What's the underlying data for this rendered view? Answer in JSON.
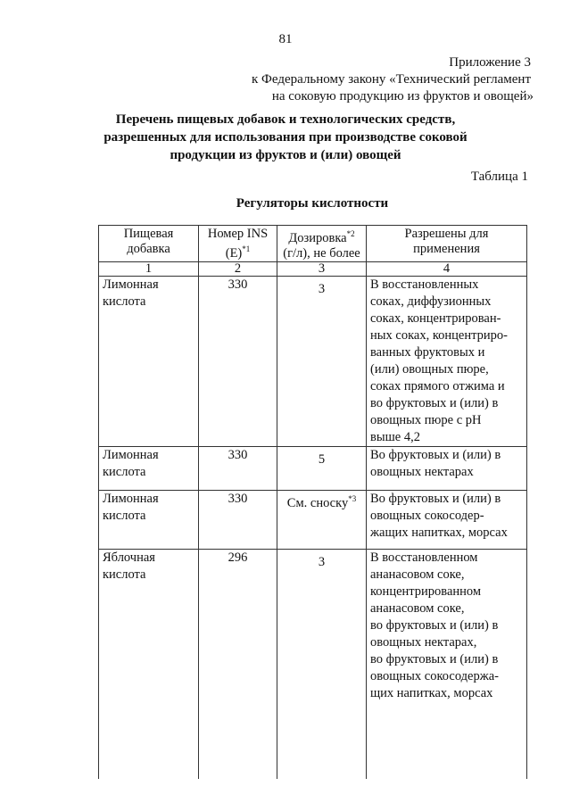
{
  "page_number": "81",
  "appendix": {
    "line1": "Приложение 3",
    "line2": "к Федеральному закону  «Технический регламент",
    "line3": "на соковую продукцию из фруктов и овощей»"
  },
  "title": "Перечень пищевых добавок и технологических средств,\nразрешенных для использования при производстве соковой\nпродукции из фруктов и (или) овощей",
  "table_label": "Таблица 1",
  "subtitle": "Регуляторы кислотности",
  "table": {
    "headers": [
      {
        "text": "Пищевая\nдобавка",
        "sup": ""
      },
      {
        "text": "Номер INS\n(E)",
        "sup": "*1"
      },
      {
        "text": "Дозировка",
        "sup": "*2",
        "text2": "\n(г/л), не более"
      },
      {
        "text": "Разрешены для\nприменения",
        "sup": ""
      }
    ],
    "column_numbers": [
      "1",
      "2",
      "3",
      "4"
    ],
    "rows": [
      {
        "additive": "Лимонная\nкислота",
        "ins": "330",
        "dosage": "3",
        "dosage_sup": "",
        "usage": "В восстановленных\nсоках, диффузионных\nсоках, концентрирован-\nных соках, концентриро-\nванных фруктовых и\n(или) овощных пюре,\nсоках прямого отжима и\nво фруктовых и (или) в\nовощных пюре с pH\nвыше 4,2"
      },
      {
        "additive": "Лимонная\nкислота",
        "ins": "330",
        "dosage": "5",
        "dosage_sup": "",
        "usage": "Во фруктовых и (или) в\nовощных нектарах"
      },
      {
        "additive": "Лимонная\nкислота",
        "ins": "330",
        "dosage": "См. сноску",
        "dosage_sup": "*3",
        "usage": "Во фруктовых и (или) в\nовощных сокосодер-\nжащих напитках, морсах"
      },
      {
        "additive": "Яблочная\nкислота",
        "ins": "296",
        "dosage": "3",
        "dosage_sup": "",
        "usage": "В восстановленном\nананасовом соке,\nконцентрированном\nананасовом соке,\nво фруктовых и (или) в\nовощных нектарах,\nво фруктовых и (или) в\nовощных сокосодержа-\nщих напитках, морсах"
      }
    ]
  }
}
